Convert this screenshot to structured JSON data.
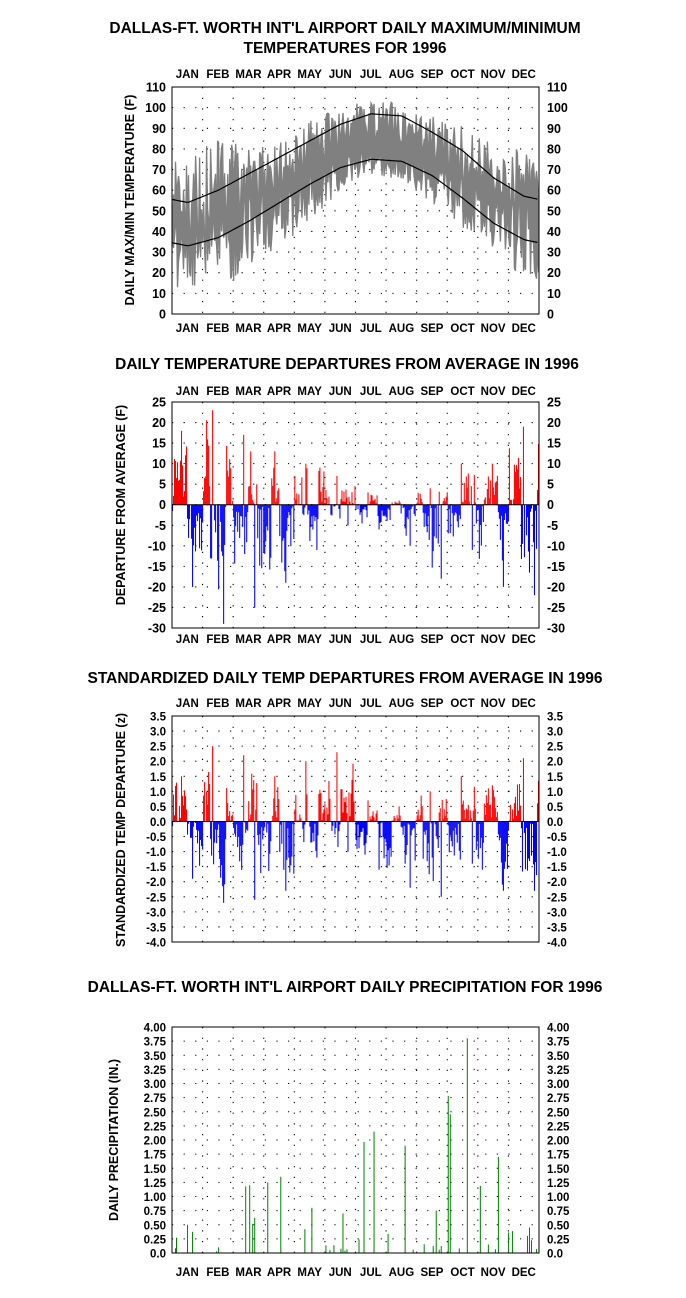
{
  "chart_data": [
    {
      "type": "area",
      "title_line1": "DALLAS-FT. WORTH INT'L AIRPORT DAILY MAXIMUM/MINIMUM",
      "title_line2": "TEMPERATURES FOR 1996",
      "ylabel": "DAILY MAX/MIN TEMPERATURE (F)",
      "xlabel": "",
      "months": [
        "JAN",
        "FEB",
        "MAR",
        "APR",
        "MAY",
        "JUN",
        "JUL",
        "AUG",
        "SEP",
        "OCT",
        "NOV",
        "DEC"
      ],
      "ylim": [
        0,
        110
      ],
      "yticks": [
        0,
        10,
        20,
        30,
        40,
        50,
        60,
        70,
        80,
        90,
        100,
        110
      ],
      "grid": "dotted",
      "daily_range_color": "#808080",
      "normal_line_color": "#000000",
      "normals_monthly": {
        "normal_max": [
          54,
          60,
          68,
          76,
          84,
          92,
          97,
          96,
          88,
          79,
          66,
          57
        ],
        "normal_min": [
          33,
          37,
          45,
          54,
          63,
          71,
          75,
          74,
          67,
          56,
          44,
          36
        ]
      },
      "daily_max_monthly": {
        "x": [
          "JAN",
          "FEB",
          "MAR",
          "APR",
          "MAY",
          "JUN",
          "JUL",
          "AUG",
          "SEP",
          "OCT",
          "NOV",
          "DEC"
        ],
        "high": [
          78,
          86,
          80,
          86,
          95,
          100,
          104,
          102,
          97,
          92,
          82,
          80
        ],
        "low": [
          35,
          35,
          45,
          55,
          68,
          82,
          85,
          82,
          70,
          60,
          50,
          45
        ]
      },
      "daily_min_monthly": {
        "x": [
          "JAN",
          "FEB",
          "MAR",
          "APR",
          "MAY",
          "JUN",
          "JUL",
          "AUG",
          "SEP",
          "OCT",
          "NOV",
          "DEC"
        ],
        "high": [
          58,
          60,
          60,
          65,
          72,
          78,
          80,
          78,
          74,
          70,
          62,
          60
        ],
        "low": [
          10,
          10,
          20,
          32,
          45,
          60,
          68,
          64,
          52,
          40,
          28,
          18
        ]
      }
    },
    {
      "type": "bar",
      "title": "DAILY TEMPERATURE DEPARTURES FROM AVERAGE IN 1996",
      "ylabel": "DEPARTURE FROM AVERAGE (F)",
      "months": [
        "JAN",
        "FEB",
        "MAR",
        "APR",
        "MAY",
        "JUN",
        "JUL",
        "AUG",
        "SEP",
        "OCT",
        "NOV",
        "DEC"
      ],
      "ylim": [
        -30,
        25
      ],
      "yticks": [
        25,
        20,
        15,
        10,
        5,
        0,
        -5,
        -10,
        -15,
        -20,
        -25,
        -30
      ],
      "positive_color": "#ff0000",
      "negative_color": "#0000ff",
      "grid": "dotted",
      "notable_values": [
        {
          "month": "JAN",
          "max_positive": 18,
          "min_negative": -20
        },
        {
          "month": "FEB",
          "max_positive": 23,
          "min_negative": -29
        },
        {
          "month": "MAR",
          "max_positive": 17,
          "min_negative": -25
        },
        {
          "month": "APR",
          "max_positive": 13,
          "min_negative": -19
        },
        {
          "month": "MAY",
          "max_positive": 10,
          "min_negative": -11
        },
        {
          "month": "JUN",
          "max_positive": 7,
          "min_negative": -5
        },
        {
          "month": "JUL",
          "max_positive": 3,
          "min_negative": -6
        },
        {
          "month": "AUG",
          "max_positive": 1,
          "min_negative": -10
        },
        {
          "month": "SEP",
          "max_positive": 4,
          "min_negative": -18
        },
        {
          "month": "OCT",
          "max_positive": 10,
          "min_negative": -11
        },
        {
          "month": "NOV",
          "max_positive": 10,
          "min_negative": -20
        },
        {
          "month": "DEC",
          "max_positive": 19,
          "min_negative": -22
        }
      ]
    },
    {
      "type": "bar",
      "title": "STANDARDIZED DAILY TEMP DEPARTURES FROM AVERAGE IN 1996",
      "ylabel": "STANDARDIZED TEMP DEPARTURE (z)",
      "months": [
        "JAN",
        "FEB",
        "MAR",
        "APR",
        "MAY",
        "JUN",
        "JUL",
        "AUG",
        "SEP",
        "OCT",
        "NOV",
        "DEC"
      ],
      "ylim": [
        -4.0,
        3.5
      ],
      "yticks": [
        "3.5",
        "3.0",
        "2.5",
        "2.0",
        "1.5",
        "1.0",
        "0.5",
        "0.0",
        "-0.5",
        "-1.0",
        "-1.5",
        "-2.0",
        "-2.5",
        "-3.0",
        "-3.5",
        "-4.0"
      ],
      "positive_color": "#ff0000",
      "negative_color": "#0000ff",
      "grid": "dotted",
      "notable_values": [
        {
          "month": "JAN",
          "max_positive": 1.5,
          "min_negative": -1.9
        },
        {
          "month": "FEB",
          "max_positive": 2.5,
          "min_negative": -2.7
        },
        {
          "month": "MAR",
          "max_positive": 2.2,
          "min_negative": -2.6
        },
        {
          "month": "APR",
          "max_positive": 1.5,
          "min_negative": -2.3
        },
        {
          "month": "MAY",
          "max_positive": 2.0,
          "min_negative": -1.2
        },
        {
          "month": "JUN",
          "max_positive": 2.3,
          "min_negative": -1.0
        },
        {
          "month": "JUL",
          "max_positive": 0.7,
          "min_negative": -1.6
        },
        {
          "month": "AUG",
          "max_positive": 0.5,
          "min_negative": -2.2
        },
        {
          "month": "SEP",
          "max_positive": 1.0,
          "min_negative": -2.5
        },
        {
          "month": "OCT",
          "max_positive": 1.5,
          "min_negative": -1.4
        },
        {
          "month": "NOV",
          "max_positive": 1.2,
          "min_negative": -2.3
        },
        {
          "month": "DEC",
          "max_positive": 2.1,
          "min_negative": -2.3
        }
      ]
    },
    {
      "type": "bar",
      "title": "DALLAS-FT. WORTH INT'L AIRPORT DAILY PRECIPITATION FOR 1996",
      "ylabel": "DAILY PRECIPITATION (IN.)",
      "months": [
        "JAN",
        "FEB",
        "MAR",
        "APR",
        "MAY",
        "JUN",
        "JUL",
        "AUG",
        "SEP",
        "OCT",
        "NOV",
        "DEC"
      ],
      "ylim": [
        0,
        4.0
      ],
      "yticks": [
        "0.0",
        "0.25",
        "0.50",
        "0.75",
        "1.00",
        "1.25",
        "1.50",
        "1.75",
        "2.00",
        "2.25",
        "2.50",
        "2.75",
        "3.00",
        "3.25",
        "3.50",
        "3.75",
        "4.00"
      ],
      "bar_color": "#008000",
      "grid": "dotted",
      "notable_values": [
        {
          "month": "JAN",
          "max": 0.5
        },
        {
          "month": "FEB",
          "max": 0.1
        },
        {
          "month": "MAR",
          "max": 1.2
        },
        {
          "month": "APR",
          "max": 1.35
        },
        {
          "month": "MAY",
          "max": 0.8
        },
        {
          "month": "JUN",
          "max": 0.7
        },
        {
          "month": "JUL",
          "max": 2.15
        },
        {
          "month": "AUG",
          "max": 1.9
        },
        {
          "month": "SEP",
          "max": 0.75
        },
        {
          "month": "OCT",
          "max": 3.8
        },
        {
          "month": "NOV",
          "max": 1.7
        },
        {
          "month": "DEC",
          "max": 0.45
        }
      ]
    }
  ]
}
